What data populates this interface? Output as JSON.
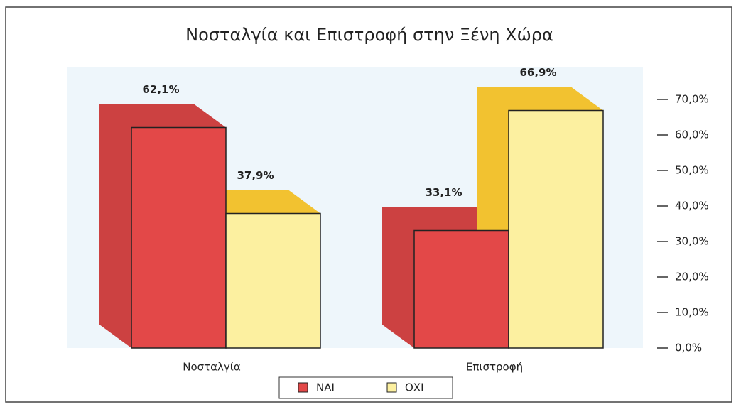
{
  "chart_data": {
    "type": "bar3d",
    "title": "Νοσταλγία και Επιστροφή στην Ξένη Χώρα",
    "categories": [
      "Νοσταλγία",
      "Επιστροφή"
    ],
    "series": [
      {
        "name": "ΝΑΙ",
        "color": "#e34848",
        "values": [
          62.1,
          33.1
        ],
        "value_labels": [
          "62,1%",
          "33,1%"
        ]
      },
      {
        "name": "ΟΧΙ",
        "color": "#fcf0a0",
        "values": [
          37.9,
          66.9
        ],
        "value_labels": [
          "37,9%",
          "66,9%"
        ]
      }
    ],
    "ylim": [
      0,
      70
    ],
    "yticks": [
      {
        "value": 0,
        "label": "0,0%"
      },
      {
        "value": 10,
        "label": "10,0%"
      },
      {
        "value": 20,
        "label": "20,0%"
      },
      {
        "value": 30,
        "label": "30,0%"
      },
      {
        "value": 40,
        "label": "40,0%"
      },
      {
        "value": 50,
        "label": "50,0%"
      },
      {
        "value": 60,
        "label": "60,0%"
      },
      {
        "value": 70,
        "label": "70,0%"
      }
    ],
    "legend": "bottom"
  }
}
